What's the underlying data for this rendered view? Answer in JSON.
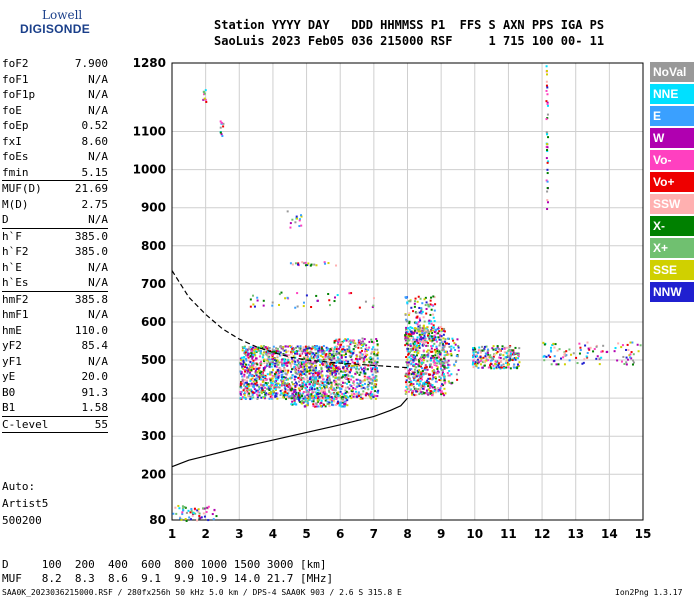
{
  "logo": {
    "line1": "Lowell",
    "line2": "DIGISONDE"
  },
  "header": {
    "row1": "Station YYYY DAY   DDD HHMMSS P1  FFS S AXN PPS IGA PS",
    "row2": "SaoLuis 2023 Feb05 036 215000 RSF     1 715 100 00- 11"
  },
  "params": [
    {
      "k": "foF2",
      "v": "7.900"
    },
    {
      "k": "foF1",
      "v": "N/A"
    },
    {
      "k": "foF1p",
      "v": "N/A"
    },
    {
      "k": "foE",
      "v": "N/A"
    },
    {
      "k": "foEp",
      "v": "0.52"
    },
    {
      "k": "fxI",
      "v": "8.60"
    },
    {
      "k": "foEs",
      "v": "N/A"
    },
    {
      "k": "fmin",
      "v": "5.15"
    },
    {
      "k": "MUF(D)",
      "v": "21.69"
    },
    {
      "k": "M(D)",
      "v": "2.75"
    },
    {
      "k": "D",
      "v": "N/A"
    },
    {
      "k": "h`F",
      "v": "385.0"
    },
    {
      "k": "h`F2",
      "v": "385.0"
    },
    {
      "k": "h`E",
      "v": "N/A"
    },
    {
      "k": "h`Es",
      "v": "N/A"
    },
    {
      "k": "hmF2",
      "v": "385.8"
    },
    {
      "k": "hmF1",
      "v": "N/A"
    },
    {
      "k": "hmE",
      "v": "110.0"
    },
    {
      "k": "yF2",
      "v": "85.4"
    },
    {
      "k": "yF1",
      "v": "N/A"
    },
    {
      "k": "yE",
      "v": "20.0"
    },
    {
      "k": "B0",
      "v": "91.3"
    },
    {
      "k": "B1",
      "v": "1.58"
    },
    {
      "k": "C-level",
      "v": "55"
    }
  ],
  "auto": {
    "l1": "Auto:",
    "l2": "Artist5",
    "l3": "500200"
  },
  "legend": [
    {
      "label": "NoVal",
      "color": "#999999"
    },
    {
      "label": "NNE",
      "color": "#00e0ff"
    },
    {
      "label": "E",
      "color": "#3aa0ff"
    },
    {
      "label": "W",
      "color": "#b000b0"
    },
    {
      "label": "Vo-",
      "color": "#ff40c0"
    },
    {
      "label": "Vo+",
      "color": "#ee0000"
    },
    {
      "label": "SSW",
      "color": "#ffb0b0"
    },
    {
      "label": "X-",
      "color": "#008000"
    },
    {
      "label": "X+",
      "color": "#70c070"
    },
    {
      "label": "SSE",
      "color": "#d0d000"
    },
    {
      "label": "NNW",
      "color": "#2020d0"
    }
  ],
  "bottom": {
    "row1": "D     100  200  400  600  800 1000 1500 3000 [km]",
    "row2": "MUF   8.2  8.3  8.6  9.1  9.9 10.9 14.0 21.7 [MHz]"
  },
  "footer": {
    "left": "SAA0K_2023036215000.RSF / 280fx256h 50 kHz 5.0 km / DPS-4 SAA0K 903 / 2.6 S 315.8 E",
    "right": "Ion2Png 1.3.17"
  },
  "chart_data": {
    "type": "scatter",
    "x_ticks": [
      "1",
      "2",
      "3",
      "4",
      "5",
      "6",
      "7",
      "8",
      "9",
      "10",
      "11",
      "12",
      "13",
      "14",
      "15"
    ],
    "y_ticks": [
      "80",
      "200",
      "300",
      "400",
      "500",
      "600",
      "700",
      "800",
      "900",
      "1000",
      "1100",
      "1280"
    ],
    "xlim": [
      1,
      15
    ],
    "ylim": [
      80,
      1280
    ],
    "grid": true,
    "trace_solid": [
      [
        1.0,
        220
      ],
      [
        1.5,
        237
      ],
      [
        2.0,
        248
      ],
      [
        3.0,
        270
      ],
      [
        4.0,
        290
      ],
      [
        5.0,
        310
      ],
      [
        6.0,
        330
      ],
      [
        7.0,
        352
      ],
      [
        7.5,
        368
      ],
      [
        7.8,
        380
      ],
      [
        8.0,
        400
      ]
    ],
    "trace_dashed": [
      [
        1.0,
        735
      ],
      [
        1.5,
        665
      ],
      [
        2.0,
        620
      ],
      [
        2.5,
        582
      ],
      [
        3.0,
        555
      ],
      [
        3.5,
        535
      ],
      [
        4.0,
        520
      ],
      [
        4.5,
        508
      ],
      [
        5.0,
        500
      ],
      [
        6.0,
        492
      ],
      [
        7.0,
        486
      ],
      [
        8.0,
        480
      ]
    ]
  }
}
